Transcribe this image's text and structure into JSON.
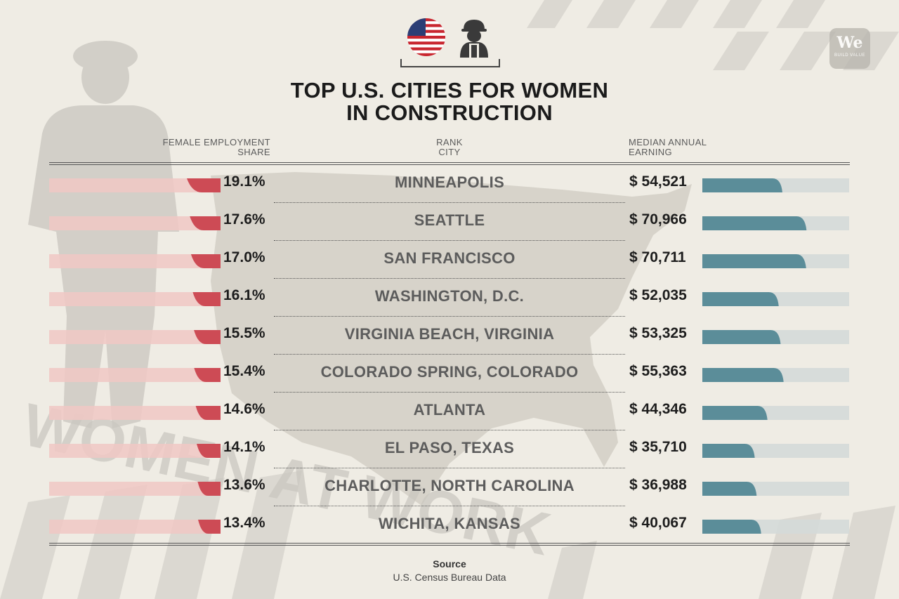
{
  "title_line1": "TOP U.S. CITIES FOR WOMEN",
  "title_line2": "IN CONSTRUCTION",
  "headers": {
    "left_line1": "FEMALE EMPLOYMENT",
    "left_line2": "SHARE",
    "mid_line1": "RANK",
    "mid_line2": "CITY",
    "right_line1": "MEDIAN ANNUAL",
    "right_line2": "EARNING"
  },
  "logo": {
    "text": "We",
    "sub": "BUILD VALUE"
  },
  "background_text": "WOMEN AT WORK",
  "icons": [
    "us-flag-icon",
    "female-construction-worker-icon"
  ],
  "colors": {
    "share_bar": "#cd4b55",
    "share_track": "#f0c8c4",
    "earning_bar": "#5b8d99",
    "earning_track": "#d4dad8",
    "background": "#efece4"
  },
  "source": {
    "label": "Source",
    "text": "U.S. Census Bureau Data"
  },
  "chart_data": {
    "type": "bar",
    "title": "TOP U.S. CITIES FOR WOMEN IN CONSTRUCTION",
    "categories": [
      "MINNEAPOLIS",
      "SEATTLE",
      "SAN FRANCISCO",
      "WASHINGTON, D.C.",
      "VIRGINIA BEACH, VIRGINIA",
      "COLORADO SPRING, COLORADO",
      "ATLANTA",
      "EL PASO, TEXAS",
      "CHARLOTTE, NORTH CAROLINA",
      "WICHITA, KANSAS"
    ],
    "share_labels": [
      "19.1%",
      "17.6%",
      "17.0%",
      "16.1%",
      "15.5%",
      "15.4%",
      "14.6%",
      "14.1%",
      "13.6%",
      "13.4%"
    ],
    "earning_labels": [
      "$ 54,521",
      "$ 70,966",
      "$ 70,711",
      "$ 52,035",
      "$ 53,325",
      "$ 55,363",
      "$ 44,346",
      "$ 35,710",
      "$ 36,988",
      "$ 40,067"
    ],
    "series": [
      {
        "name": "FEMALE EMPLOYMENT SHARE",
        "values": [
          19.1,
          17.6,
          17.0,
          16.1,
          15.5,
          15.4,
          14.6,
          14.1,
          13.6,
          13.4
        ]
      },
      {
        "name": "MEDIAN ANNUAL EARNING",
        "values": [
          54521,
          70966,
          70711,
          52035,
          53325,
          55363,
          44346,
          35710,
          36988,
          40067
        ]
      }
    ]
  }
}
